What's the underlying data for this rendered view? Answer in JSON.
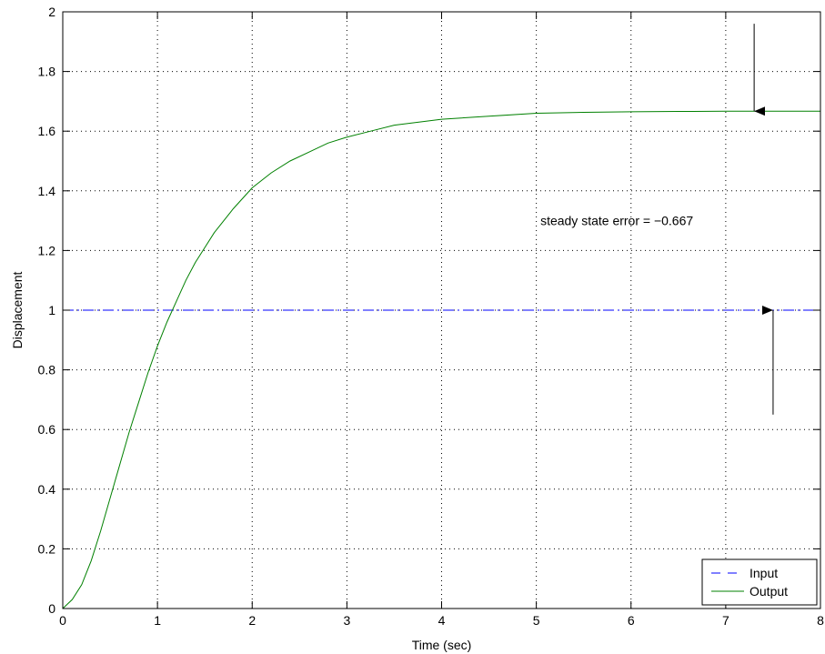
{
  "chart_data": {
    "type": "line",
    "title": "",
    "xlabel": "Time (sec)",
    "ylabel": "Displacement",
    "xlim": [
      0,
      8
    ],
    "ylim": [
      0,
      2
    ],
    "xticks": [
      0,
      1,
      2,
      3,
      4,
      5,
      6,
      7,
      8
    ],
    "xtick_labels": [
      "0",
      "1",
      "2",
      "3",
      "4",
      "5",
      "6",
      "7",
      "8"
    ],
    "yticks": [
      0,
      0.2,
      0.4,
      0.6,
      0.8,
      1,
      1.2,
      1.4,
      1.6,
      1.8,
      2
    ],
    "ytick_labels": [
      "0",
      "0.2",
      "0.4",
      "0.6",
      "0.8",
      "1",
      "1.2",
      "1.4",
      "1.6",
      "1.8",
      "2"
    ],
    "grid": true,
    "legend_position": "bottom-right",
    "series": [
      {
        "name": "Input",
        "color": "#0000ff",
        "style": "dash-dot",
        "x": [
          0,
          8
        ],
        "y": [
          1,
          1
        ]
      },
      {
        "name": "Output",
        "color": "#008000",
        "style": "solid",
        "x": [
          0,
          0.1,
          0.2,
          0.3,
          0.4,
          0.5,
          0.6,
          0.7,
          0.8,
          0.9,
          1.0,
          1.1,
          1.2,
          1.3,
          1.4,
          1.5,
          1.6,
          1.8,
          2.0,
          2.2,
          2.4,
          2.6,
          2.8,
          3.0,
          3.25,
          3.5,
          3.75,
          4.0,
          4.5,
          5.0,
          5.5,
          6.0,
          6.5,
          7.0,
          7.5,
          8.0
        ],
        "y": [
          0,
          0.03,
          0.08,
          0.16,
          0.26,
          0.37,
          0.48,
          0.59,
          0.69,
          0.79,
          0.88,
          0.96,
          1.03,
          1.1,
          1.16,
          1.21,
          1.26,
          1.34,
          1.41,
          1.46,
          1.5,
          1.53,
          1.56,
          1.58,
          1.6,
          1.62,
          1.63,
          1.64,
          1.65,
          1.66,
          1.663,
          1.665,
          1.666,
          1.667,
          1.667,
          1.667
        ]
      }
    ],
    "annotations": [
      {
        "text": "steady state error = −0.667",
        "x": 5.85,
        "y": 1.3
      }
    ],
    "arrows": [
      {
        "from": [
          7.3,
          1.96
        ],
        "to": [
          7.3,
          1.667
        ]
      },
      {
        "from": [
          7.5,
          0.65
        ],
        "to": [
          7.5,
          1.0
        ]
      }
    ]
  }
}
